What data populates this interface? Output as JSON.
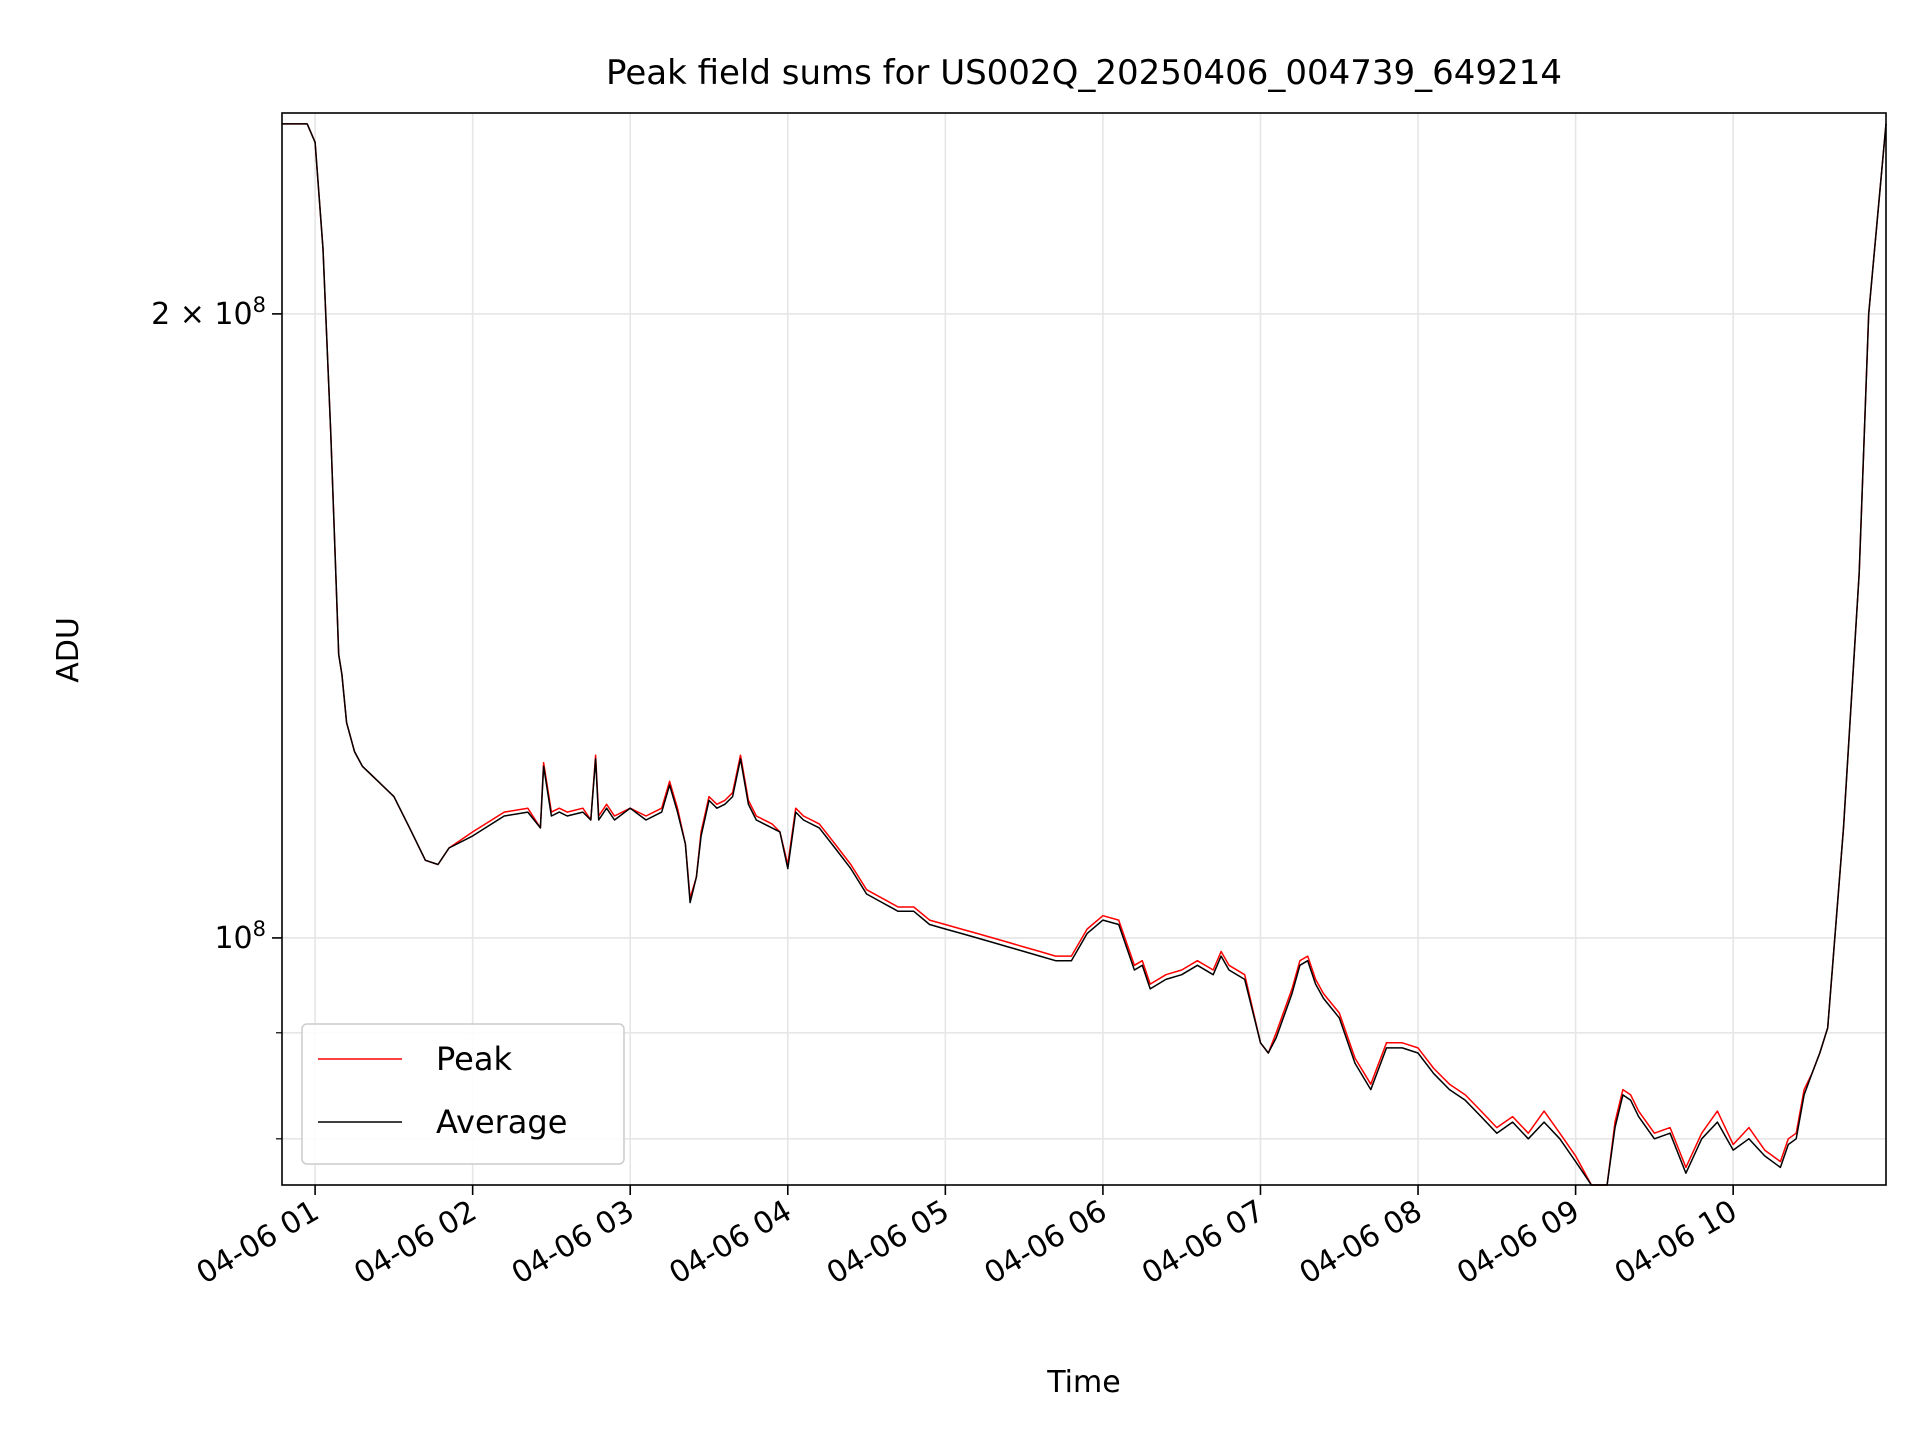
{
  "chart_data": {
    "type": "line",
    "title": "Peak field sums for US002Q_20250406_004739_649214",
    "xlabel": "Time",
    "ylabel": "ADU",
    "x_unit": "hours",
    "x_range": [
      0.79,
      10.97
    ],
    "y_scale": "log",
    "ylim": [
      76000000,
      250000000
    ],
    "x_ticks": [
      {
        "value": 1,
        "label": "04-06 01"
      },
      {
        "value": 2,
        "label": "04-06 02"
      },
      {
        "value": 3,
        "label": "04-06 03"
      },
      {
        "value": 4,
        "label": "04-06 04"
      },
      {
        "value": 5,
        "label": "04-06 05"
      },
      {
        "value": 6,
        "label": "04-06 06"
      },
      {
        "value": 7,
        "label": "04-06 07"
      },
      {
        "value": 8,
        "label": "04-06 08"
      },
      {
        "value": 9,
        "label": "04-06 09"
      },
      {
        "value": 10,
        "label": "04-06 10"
      }
    ],
    "y_ticks_major": [
      {
        "value": 200000000,
        "base": "2 × 10",
        "exp": "8"
      },
      {
        "value": 100000000,
        "base": "10",
        "exp": "8"
      }
    ],
    "y_ticks_minor": [
      90000000,
      80000000
    ],
    "grid": true,
    "legend_position": "lower-left",
    "series": [
      {
        "name": "Average",
        "color": "#000000",
        "x": [
          0.79,
          0.95,
          1.0,
          1.05,
          1.1,
          1.15,
          1.17,
          1.2,
          1.25,
          1.3,
          1.4,
          1.5,
          1.6,
          1.7,
          1.78,
          1.85,
          2.0,
          2.2,
          2.35,
          2.43,
          2.45,
          2.5,
          2.55,
          2.6,
          2.7,
          2.75,
          2.78,
          2.8,
          2.85,
          2.9,
          3.0,
          3.1,
          3.2,
          3.25,
          3.3,
          3.35,
          3.38,
          3.42,
          3.45,
          3.5,
          3.55,
          3.6,
          3.65,
          3.7,
          3.75,
          3.8,
          3.9,
          3.95,
          4.0,
          4.05,
          4.1,
          4.2,
          4.3,
          4.4,
          4.5,
          4.6,
          4.7,
          4.8,
          4.9,
          5.0,
          5.1,
          5.2,
          5.3,
          5.4,
          5.5,
          5.6,
          5.7,
          5.8,
          5.9,
          6.0,
          6.1,
          6.2,
          6.25,
          6.3,
          6.4,
          6.5,
          6.6,
          6.7,
          6.75,
          6.8,
          6.9,
          7.0,
          7.05,
          7.1,
          7.2,
          7.25,
          7.3,
          7.35,
          7.4,
          7.5,
          7.6,
          7.7,
          7.8,
          7.9,
          8.0,
          8.1,
          8.2,
          8.3,
          8.4,
          8.5,
          8.6,
          8.7,
          8.8,
          8.9,
          9.0,
          9.1,
          9.2,
          9.25,
          9.3,
          9.35,
          9.4,
          9.5,
          9.6,
          9.7,
          9.8,
          9.9,
          10.0,
          10.1,
          10.2,
          10.3,
          10.35,
          10.4,
          10.45,
          10.5,
          10.55,
          10.6,
          10.7,
          10.8,
          10.86,
          10.97
        ],
        "values": [
          247000000,
          247000000,
          242000000,
          215000000,
          175000000,
          137000000,
          134000000,
          127000000,
          123000000,
          121000000,
          119000000,
          117000000,
          113000000,
          109000000,
          108500000,
          110500000,
          112000000,
          114500000,
          115000000,
          113000000,
          121000000,
          114500000,
          115000000,
          114500000,
          115000000,
          114000000,
          122000000,
          114000000,
          115500000,
          114000000,
          115500000,
          114000000,
          115000000,
          118500000,
          115000000,
          111000000,
          104000000,
          107000000,
          112000000,
          116500000,
          115500000,
          116000000,
          117000000,
          122000000,
          116000000,
          114000000,
          113000000,
          112500000,
          108000000,
          115000000,
          114000000,
          113000000,
          110500000,
          108000000,
          105000000,
          104000000,
          103000000,
          103000000,
          101500000,
          101000000,
          100500000,
          100000000,
          99500000,
          99000000,
          98500000,
          98000000,
          97500000,
          97500000,
          100500000,
          102000000,
          101500000,
          96500000,
          97000000,
          94500000,
          95500000,
          96000000,
          97000000,
          96000000,
          98000000,
          96500000,
          95500000,
          89000000,
          88000000,
          89500000,
          94000000,
          97000000,
          97500000,
          95000000,
          93500000,
          91500000,
          87000000,
          84500000,
          88500000,
          88500000,
          88000000,
          86000000,
          84500000,
          83500000,
          82000000,
          80500000,
          81500000,
          80000000,
          81500000,
          80000000,
          78000000,
          76000000,
          76000000,
          81000000,
          84000000,
          83500000,
          82000000,
          80000000,
          80500000,
          77000000,
          80000000,
          81500000,
          79000000,
          80000000,
          78500000,
          77500000,
          79500000,
          80000000,
          84000000,
          86000000,
          88000000,
          90500000,
          113000000,
          150000000,
          200000000,
          247000000
        ]
      },
      {
        "name": "Peak",
        "color": "#ff0000",
        "x": [
          0.79,
          0.95,
          1.0,
          1.05,
          1.1,
          1.15,
          1.17,
          1.2,
          1.25,
          1.3,
          1.4,
          1.5,
          1.6,
          1.7,
          1.78,
          1.85,
          2.0,
          2.2,
          2.35,
          2.43,
          2.45,
          2.5,
          2.55,
          2.6,
          2.7,
          2.75,
          2.78,
          2.8,
          2.85,
          2.9,
          3.0,
          3.1,
          3.2,
          3.25,
          3.3,
          3.35,
          3.38,
          3.42,
          3.45,
          3.5,
          3.55,
          3.6,
          3.65,
          3.7,
          3.75,
          3.8,
          3.9,
          3.95,
          4.0,
          4.05,
          4.1,
          4.2,
          4.3,
          4.4,
          4.5,
          4.6,
          4.7,
          4.8,
          4.9,
          5.0,
          5.1,
          5.2,
          5.3,
          5.4,
          5.5,
          5.6,
          5.7,
          5.8,
          5.9,
          6.0,
          6.1,
          6.2,
          6.25,
          6.3,
          6.4,
          6.5,
          6.6,
          6.7,
          6.75,
          6.8,
          6.9,
          7.0,
          7.05,
          7.1,
          7.2,
          7.25,
          7.3,
          7.35,
          7.4,
          7.5,
          7.6,
          7.7,
          7.8,
          7.9,
          8.0,
          8.1,
          8.2,
          8.3,
          8.4,
          8.5,
          8.6,
          8.7,
          8.8,
          8.9,
          9.0,
          9.1,
          9.2,
          9.25,
          9.3,
          9.35,
          9.4,
          9.5,
          9.6,
          9.7,
          9.8,
          9.9,
          10.0,
          10.1,
          10.2,
          10.3,
          10.35,
          10.4,
          10.45,
          10.5,
          10.55,
          10.6,
          10.7,
          10.8,
          10.86,
          10.97
        ],
        "values": [
          247000000,
          247000000,
          242000000,
          215000000,
          175000000,
          137000000,
          134000000,
          127000000,
          123000000,
          121000000,
          119000000,
          117000000,
          113000000,
          109000000,
          108500000,
          110500000,
          112500000,
          115000000,
          115500000,
          113000000,
          121500000,
          115000000,
          115500000,
          115000000,
          115500000,
          114000000,
          122500000,
          114500000,
          116000000,
          114500000,
          115500000,
          114500000,
          115500000,
          119000000,
          115500000,
          111000000,
          104500000,
          107000000,
          112500000,
          117000000,
          116000000,
          116500000,
          117500000,
          122500000,
          116500000,
          114500000,
          113500000,
          112500000,
          108500000,
          115500000,
          114500000,
          113500000,
          111000000,
          108500000,
          105500000,
          104500000,
          103500000,
          103500000,
          102000000,
          101500000,
          101000000,
          100500000,
          100000000,
          99500000,
          99000000,
          98500000,
          98000000,
          98000000,
          101000000,
          102500000,
          102000000,
          97000000,
          97500000,
          95000000,
          96000000,
          96500000,
          97500000,
          96500000,
          98500000,
          97000000,
          96000000,
          89000000,
          88000000,
          90000000,
          94500000,
          97500000,
          98000000,
          95500000,
          94000000,
          92000000,
          87500000,
          85000000,
          89000000,
          89000000,
          88500000,
          86500000,
          85000000,
          84000000,
          82500000,
          81000000,
          82000000,
          80500000,
          82500000,
          80500000,
          78500000,
          76000000,
          76000000,
          81500000,
          84500000,
          84000000,
          82500000,
          80500000,
          81000000,
          77500000,
          80500000,
          82500000,
          79500000,
          81000000,
          79000000,
          78000000,
          80000000,
          80500000,
          84500000,
          86000000,
          88000000,
          90500000,
          113000000,
          150000000,
          200000000,
          247000000
        ]
      }
    ]
  }
}
